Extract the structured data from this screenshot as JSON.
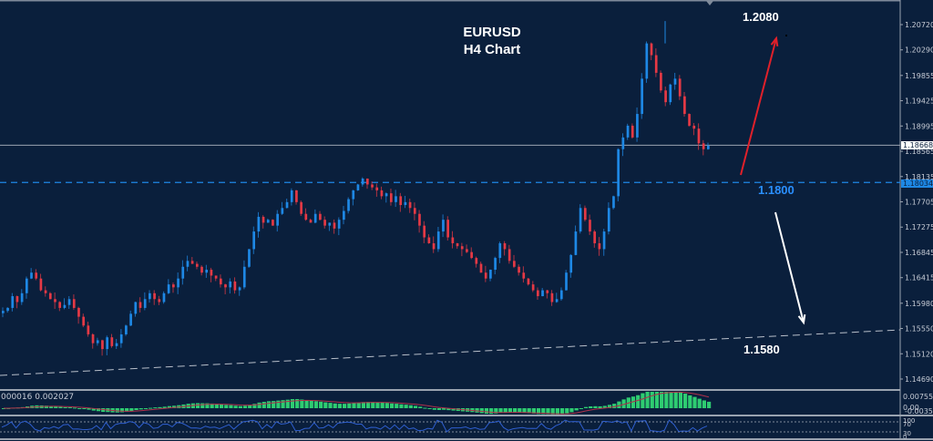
{
  "title": {
    "line1": "EURUSD",
    "line2": "H4 Chart"
  },
  "annotations": {
    "target_up": "1.2080",
    "pivot": "1.1800",
    "target_down": "1.1580"
  },
  "price_axis": {
    "ticks": [
      "1.20720",
      "1.20290",
      "1.19855",
      "1.19425",
      "1.18995",
      "1.18565",
      "1.18135",
      "1.17705",
      "1.17275",
      "1.16845",
      "1.16415",
      "1.15980",
      "1.15550",
      "1.15120",
      "1.14690"
    ],
    "current_price": "1.18668",
    "level_price": "1.18034"
  },
  "indicators": {
    "macd": {
      "values_label": "000016 0.002027",
      "axis_top": "0.007557",
      "axis_mid": "0.00",
      "axis_bottom": "-0.00354"
    },
    "oscillator": {
      "axis_labels": [
        "100",
        "70",
        "30",
        "0"
      ]
    }
  },
  "colors": {
    "background": "#0a1f3c",
    "bull": "#1e88e5",
    "bear": "#e53945",
    "macd_hist": "#2ecc71",
    "signal": "#b0304a",
    "osc_line": "#2f5fcf",
    "level_blue": "#1e88e5",
    "arrow_up": "#e0202a",
    "arrow_down": "#ffffff"
  },
  "chart_data": {
    "type": "candlestick",
    "title": "EURUSD H4 Chart",
    "symbol": "EURUSD",
    "timeframe": "H4",
    "ylim": [
      1.1455,
      1.2115
    ],
    "grid": false,
    "current_price": 1.18668,
    "horizontal_levels": [
      {
        "price": 1.18034,
        "style": "dashed",
        "color": "#1e88e5",
        "label": "1.1800"
      },
      {
        "price": 1.18668,
        "style": "solid",
        "color": "#9aa3b0"
      }
    ],
    "trendline": {
      "from": [
        0,
        1.1493
      ],
      "to": [
        988,
        1.1557
      ],
      "style": "dashed",
      "label": "1.1580"
    },
    "arrows": [
      {
        "direction": "up",
        "from_price": 1.1808,
        "to_price": 1.2025,
        "target_label": "1.2080",
        "color": "#e0202a"
      },
      {
        "direction": "down",
        "from_price": 1.177,
        "to_price": 1.1557,
        "target_label": "1.1580",
        "color": "#ffffff"
      }
    ],
    "close_path": [
      1.1585,
      1.159,
      1.161,
      1.16,
      1.1615,
      1.164,
      1.165,
      1.164,
      1.162,
      1.1615,
      1.1605,
      1.16,
      1.159,
      1.1595,
      1.1605,
      1.159,
      1.1575,
      1.156,
      1.1545,
      1.153,
      1.1535,
      1.152,
      1.154,
      1.1525,
      1.153,
      1.1545,
      1.156,
      1.158,
      1.16,
      1.159,
      1.1605,
      1.1615,
      1.1605,
      1.16,
      1.1615,
      1.163,
      1.1625,
      1.164,
      1.166,
      1.167,
      1.1665,
      1.166,
      1.165,
      1.1655,
      1.1645,
      1.164,
      1.163,
      1.1625,
      1.1635,
      1.162,
      1.1625,
      1.166,
      1.169,
      1.172,
      1.1745,
      1.1735,
      1.174,
      1.173,
      1.175,
      1.176,
      1.177,
      1.179,
      1.177,
      1.175,
      1.174,
      1.1735,
      1.175,
      1.174,
      1.173,
      1.1735,
      1.1725,
      1.174,
      1.1755,
      1.1775,
      1.179,
      1.18,
      1.181,
      1.18,
      1.1795,
      1.179,
      1.178,
      1.1785,
      1.177,
      1.178,
      1.1765,
      1.177,
      1.176,
      1.175,
      1.173,
      1.171,
      1.17,
      1.169,
      1.172,
      1.174,
      1.171,
      1.17,
      1.1695,
      1.169,
      1.1685,
      1.1675,
      1.1665,
      1.165,
      1.164,
      1.1655,
      1.1675,
      1.17,
      1.169,
      1.167,
      1.166,
      1.165,
      1.164,
      1.163,
      1.162,
      1.161,
      1.162,
      1.1615,
      1.16,
      1.1605,
      1.162,
      1.165,
      1.168,
      1.172,
      1.176,
      1.174,
      1.172,
      1.17,
      1.169,
      1.172,
      1.176,
      1.178,
      1.186,
      1.188,
      1.19,
      1.188,
      1.192,
      1.198,
      1.204,
      1.202,
      1.199,
      1.196,
      1.194,
      1.197,
      1.198,
      1.195,
      1.192,
      1.19,
      1.1895,
      1.187,
      1.186,
      1.1866
    ]
  }
}
